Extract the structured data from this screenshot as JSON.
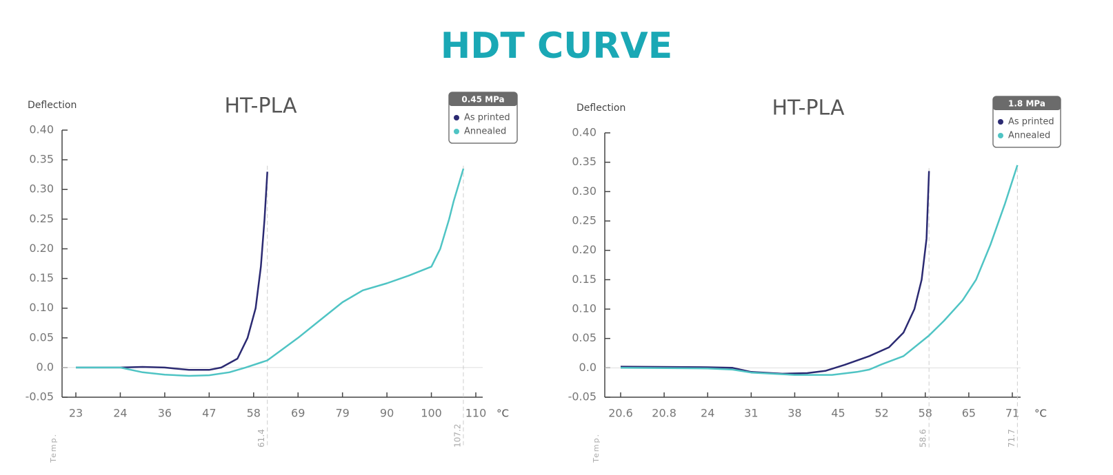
{
  "title": "HDT CURVE",
  "chart_data": [
    {
      "type": "line",
      "title": "HT-PLA",
      "y_label": "Deflection",
      "x_label": "Temp.",
      "x_unit": "°C",
      "legend_title": "0.45 MPa",
      "legend": "top-right",
      "xticks": [
        23,
        24,
        36,
        47,
        58,
        69,
        79,
        90,
        100,
        110
      ],
      "ylim": [
        -0.05,
        0.4
      ],
      "yticks": [
        {
          "value": 0.4,
          "label": "0.40"
        },
        0.35,
        {
          "value": 0.3,
          "label": "0.30"
        },
        0.25,
        {
          "value": 0.2,
          "label": "0.20"
        },
        0.15,
        {
          "value": 0.1,
          "label": "0.10"
        },
        0.05,
        {
          "value": 0,
          "label": "0.0"
        },
        -0.05
      ],
      "markers": [
        61.4,
        107.2
      ],
      "series": [
        {
          "name": "As printed",
          "color": "#2b2a72",
          "x": [
            23,
            24,
            30,
            36,
            42,
            47,
            50,
            54,
            56.5,
            58.5,
            59.8,
            60.7,
            61.4
          ],
          "values": [
            0,
            0,
            0.001,
            0,
            -0.004,
            -0.004,
            0,
            0.015,
            0.05,
            0.1,
            0.17,
            0.25,
            0.33
          ]
        },
        {
          "name": "Annealed",
          "color": "#4fc4c4",
          "x": [
            23,
            24,
            30,
            36,
            42,
            47,
            52,
            56,
            61.4,
            65,
            69,
            74,
            79,
            84,
            90,
            95,
            100,
            102,
            104,
            105,
            107.2
          ],
          "values": [
            0,
            0,
            -0.008,
            -0.012,
            -0.014,
            -0.013,
            -0.008,
            0,
            0.012,
            0.03,
            0.05,
            0.08,
            0.11,
            0.13,
            0.142,
            0.155,
            0.17,
            0.2,
            0.25,
            0.28,
            0.335
          ]
        }
      ]
    },
    {
      "type": "line",
      "title": "HT-PLA",
      "y_label": "Deflection",
      "x_label": "Temp.",
      "x_unit": "°C",
      "legend_title": "1.8 MPa",
      "legend": "top-right",
      "xticks": [
        20.6,
        20.8,
        24,
        31,
        38,
        45,
        52,
        58,
        65,
        71
      ],
      "ylim": [
        -0.05,
        0.4
      ],
      "yticks": [
        {
          "value": 0.4,
          "label": "0.40"
        },
        0.35,
        {
          "value": 0.3,
          "label": "0.30"
        },
        0.25,
        {
          "value": 0.2,
          "label": "0.20"
        },
        0.15,
        {
          "value": 0.1,
          "label": "0.10"
        },
        0.05,
        {
          "value": 0,
          "label": "0.0"
        },
        -0.05
      ],
      "markers": [
        58.6,
        71.7
      ],
      "series": [
        {
          "name": "As printed",
          "color": "#2b2a72",
          "x": [
            20.6,
            24,
            28,
            31,
            36,
            40,
            43,
            46,
            50,
            53,
            55,
            56.5,
            57.5,
            58.2,
            58.6
          ],
          "values": [
            0.002,
            0.001,
            0,
            -0.007,
            -0.01,
            -0.009,
            -0.005,
            0.005,
            0.02,
            0.035,
            0.06,
            0.1,
            0.15,
            0.22,
            0.335
          ]
        },
        {
          "name": "Annealed",
          "color": "#4fc4c4",
          "x": [
            20.6,
            24,
            28,
            31,
            38,
            44,
            48,
            50,
            52,
            55,
            58.6,
            61,
            64,
            66,
            68,
            70,
            71.7
          ],
          "values": [
            0,
            -0.001,
            -0.003,
            -0.008,
            -0.012,
            -0.012,
            -0.007,
            -0.003,
            0.006,
            0.02,
            0.055,
            0.08,
            0.115,
            0.15,
            0.21,
            0.28,
            0.345
          ]
        }
      ]
    }
  ]
}
